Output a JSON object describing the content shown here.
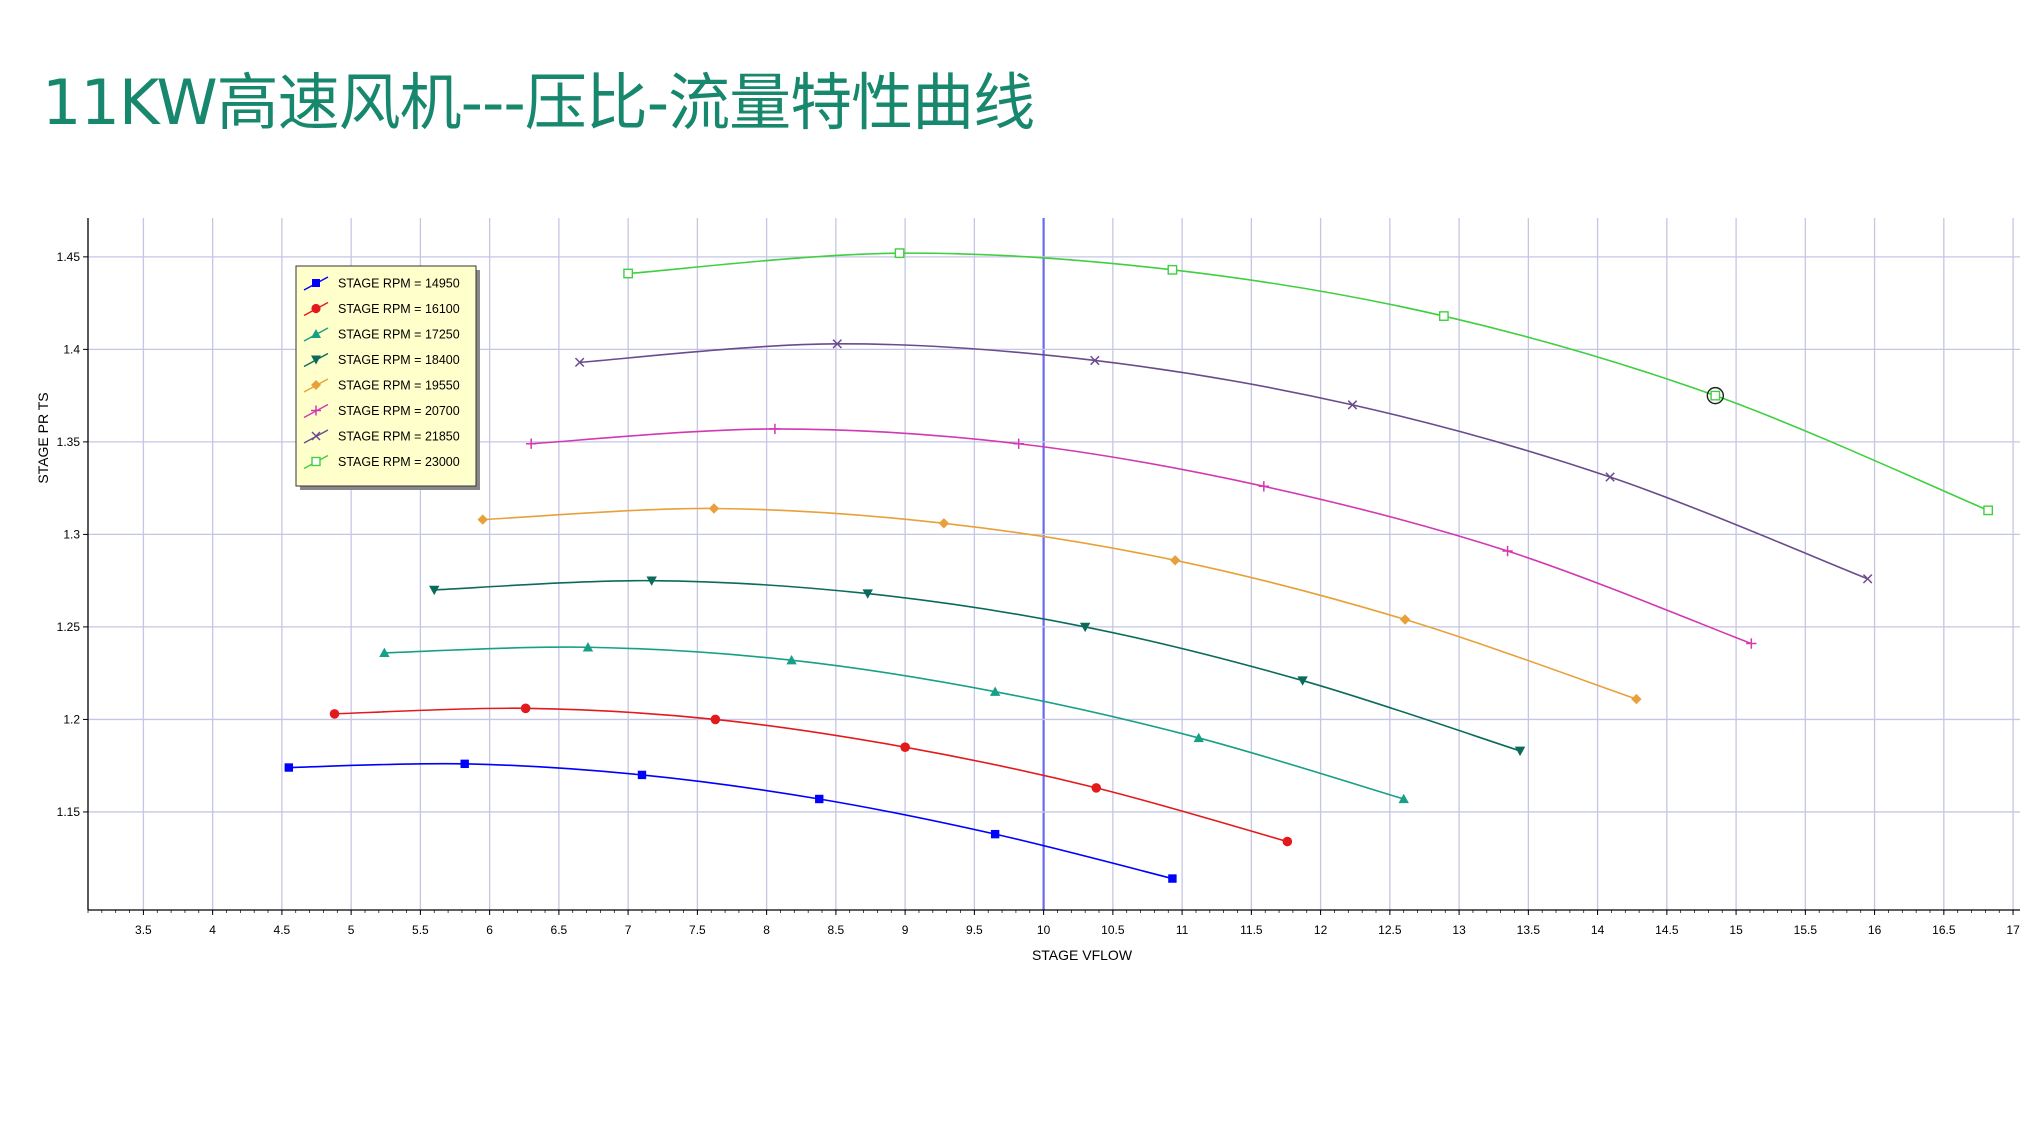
{
  "page": {
    "title": "11KW高速风机---压比-流量特性曲线",
    "title_color": "#17876d"
  },
  "chart_data": {
    "type": "line",
    "xlabel": "STAGE VFLOW",
    "ylabel": "STAGE PR TS",
    "xlim": [
      3.1,
      17.05
    ],
    "ylim": [
      1.097,
      1.471
    ],
    "x_ticks": [
      "3.5",
      "4",
      "4.5",
      "5",
      "5.5",
      "6",
      "6.5",
      "7",
      "7.5",
      "8",
      "8.5",
      "9",
      "9.5",
      "10",
      "10.5",
      "11",
      "11.5",
      "12",
      "12.5",
      "13",
      "13.5",
      "14",
      "14.5",
      "15",
      "15.5",
      "16",
      "16.5",
      "17"
    ],
    "y_ticks": [
      "1.15",
      "1.2",
      "1.25",
      "1.3",
      "1.35",
      "1.4",
      "1.45"
    ],
    "grid": true,
    "legend_position": "top-left",
    "highlight_x": 10,
    "selected_point": {
      "series": "STAGE RPM = 23000",
      "x": 14.85,
      "y": 1.375
    },
    "series": [
      {
        "name": "STAGE RPM = 14950",
        "color": "#0000ff",
        "marker": "square-filled",
        "x": [
          4.55,
          5.82,
          7.1,
          8.38,
          9.65,
          10.93
        ],
        "y": [
          1.174,
          1.176,
          1.17,
          1.157,
          1.138,
          1.114
        ]
      },
      {
        "name": "STAGE RPM = 16100",
        "color": "#e31a1c",
        "marker": "circle-filled",
        "x": [
          4.88,
          6.26,
          7.63,
          9.0,
          10.38,
          11.76
        ],
        "y": [
          1.203,
          1.206,
          1.2,
          1.185,
          1.163,
          1.134
        ]
      },
      {
        "name": "STAGE RPM = 17250",
        "color": "#17a085",
        "marker": "triangle-up",
        "x": [
          5.24,
          6.71,
          8.18,
          9.65,
          11.12,
          12.6
        ],
        "y": [
          1.236,
          1.239,
          1.232,
          1.215,
          1.19,
          1.157
        ]
      },
      {
        "name": "STAGE RPM = 18400",
        "color": "#0b6b5a",
        "marker": "triangle-down",
        "x": [
          5.6,
          7.17,
          8.73,
          10.3,
          11.87,
          13.44
        ],
        "y": [
          1.27,
          1.275,
          1.268,
          1.25,
          1.221,
          1.183
        ]
      },
      {
        "name": "STAGE RPM = 19550",
        "color": "#e8a13a",
        "marker": "diamond",
        "x": [
          5.95,
          7.62,
          9.28,
          10.95,
          12.61,
          14.28
        ],
        "y": [
          1.308,
          1.314,
          1.306,
          1.286,
          1.254,
          1.211
        ]
      },
      {
        "name": "STAGE RPM = 20700",
        "color": "#d238b2",
        "marker": "plus",
        "x": [
          6.3,
          8.06,
          9.82,
          11.59,
          13.35,
          15.11
        ],
        "y": [
          1.349,
          1.357,
          1.349,
          1.326,
          1.291,
          1.241
        ]
      },
      {
        "name": "STAGE RPM = 21850",
        "color": "#6a4c8c",
        "marker": "cross",
        "x": [
          6.65,
          8.51,
          10.37,
          12.23,
          14.09,
          15.95
        ],
        "y": [
          1.393,
          1.403,
          1.394,
          1.37,
          1.331,
          1.276
        ]
      },
      {
        "name": "STAGE RPM = 23000",
        "color": "#3fcf3f",
        "marker": "square-open",
        "x": [
          7.0,
          8.96,
          10.93,
          12.89,
          14.85,
          16.82
        ],
        "y": [
          1.441,
          1.452,
          1.443,
          1.418,
          1.375,
          1.313
        ]
      }
    ]
  }
}
